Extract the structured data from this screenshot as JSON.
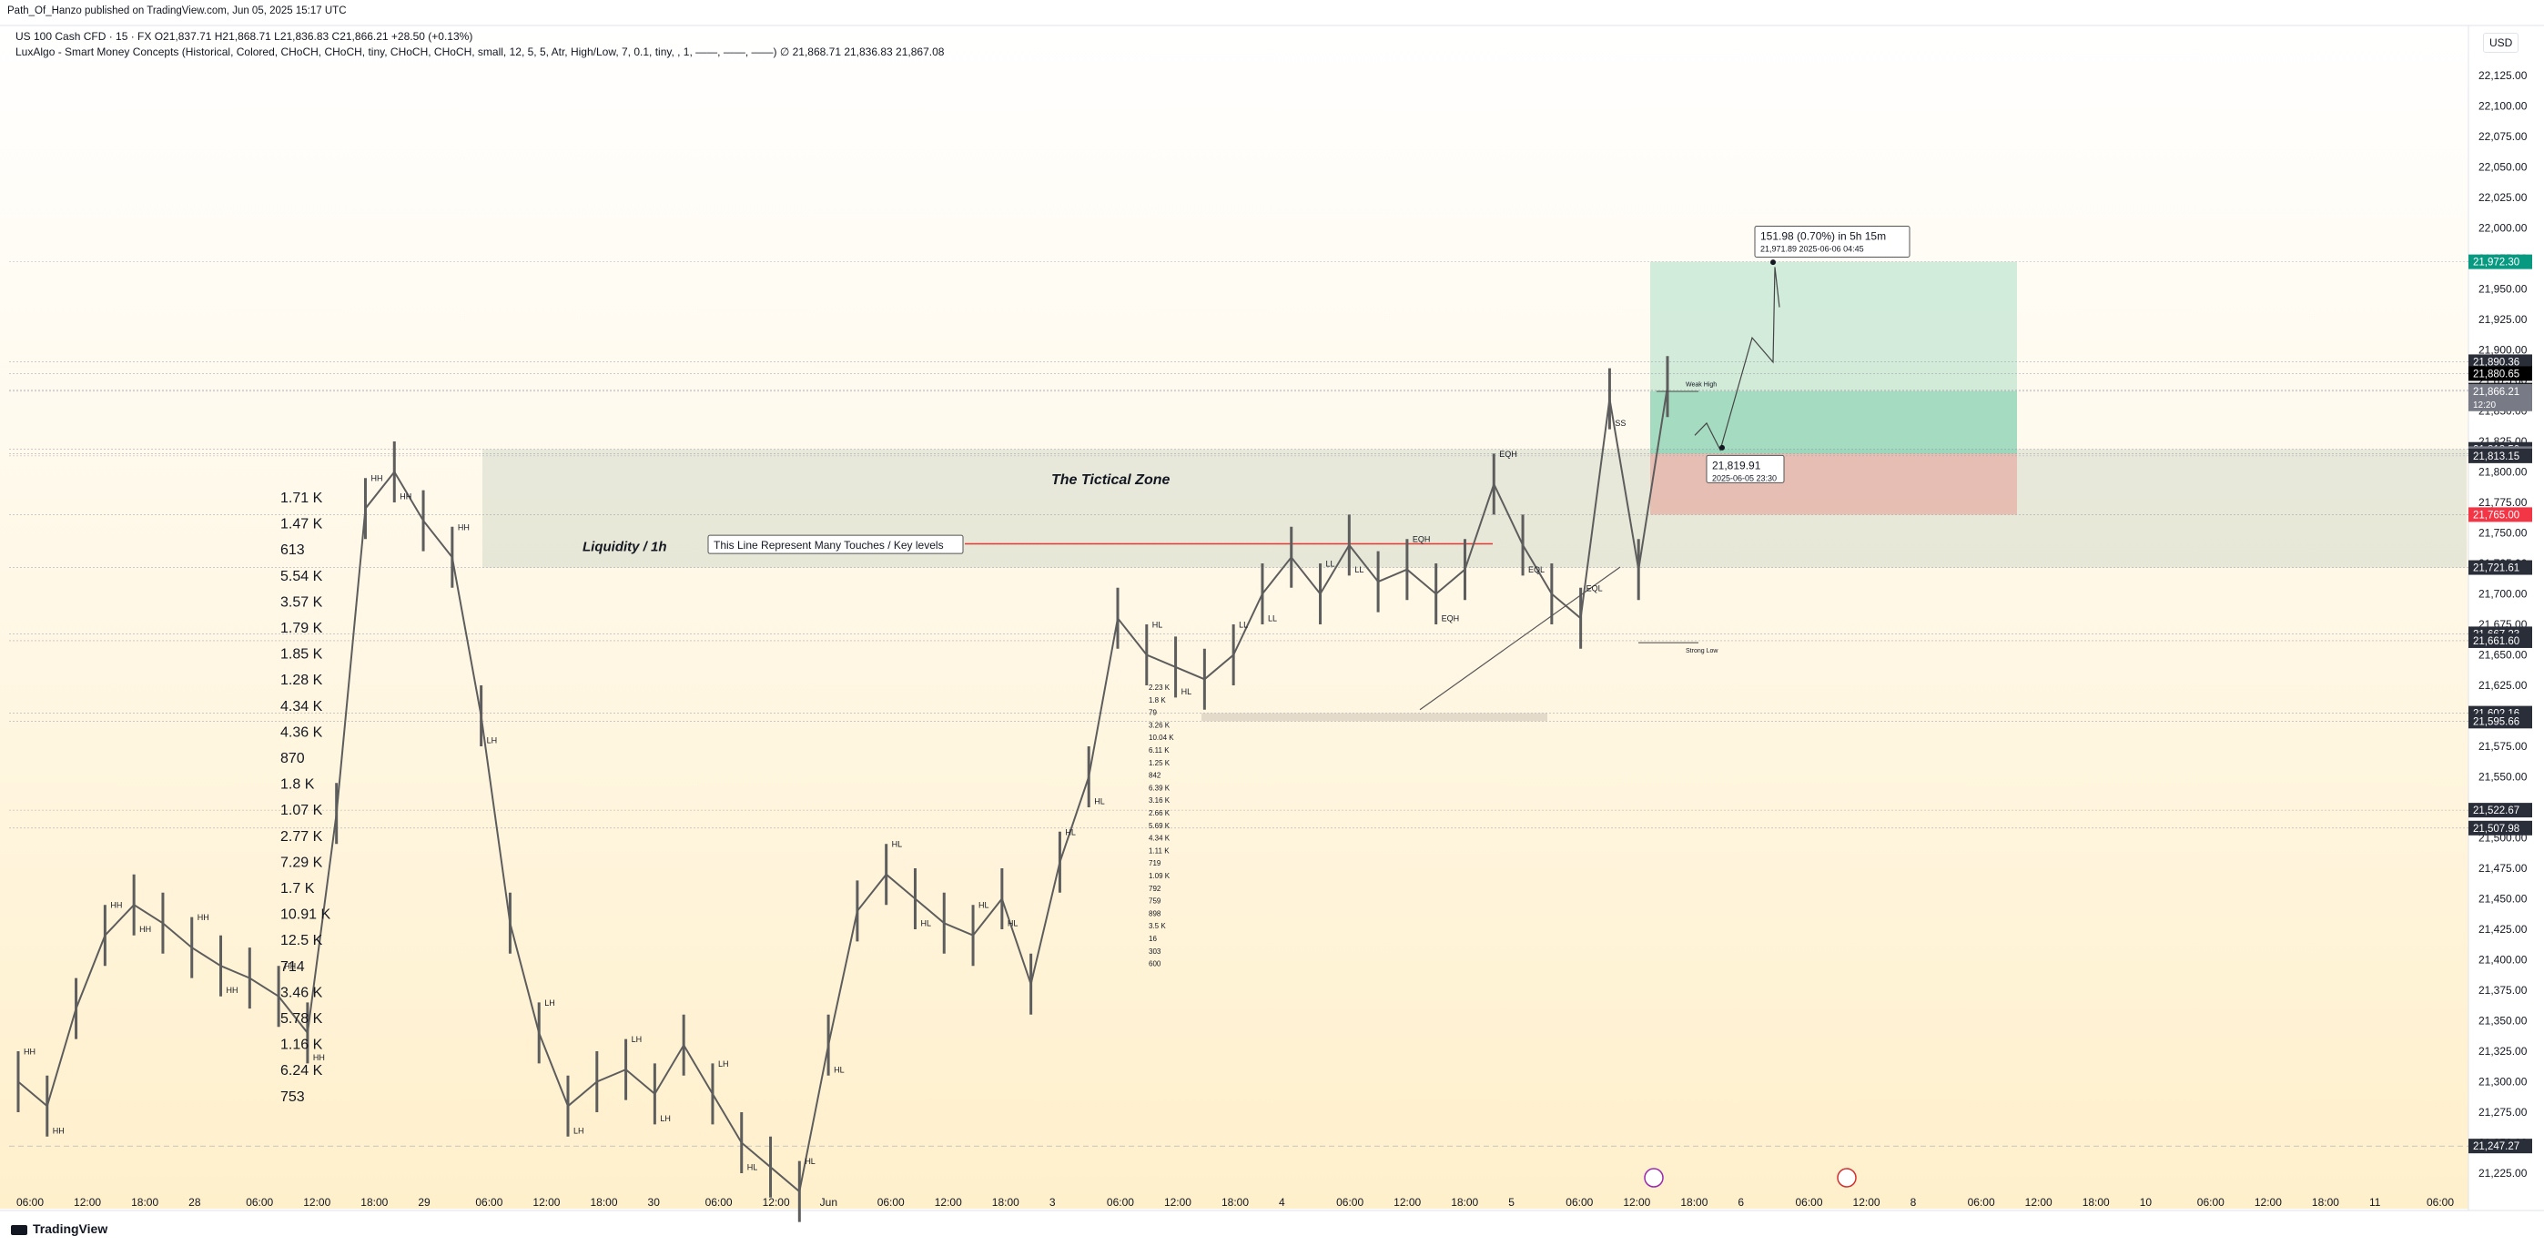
{
  "header": {
    "published_by": "Path_Of_Hanzo published on TradingView.com, Jun 05, 2025 15:17 UTC",
    "symbol_line": "US 100 Cash CFD · 15 · FX  O21,837.71  H21,868.71  L21,836.83  C21,866.21  +28.50 (+0.13%)",
    "indicator_line": "LuxAlgo - Smart Money Concepts (Historical, Colored, CHoCH, CHoCH, tiny, CHoCH, CHoCH, small, 12, 5, 5, Atr, High/Low, 7, 0.1, tiny, , 1, ——, ——, ——)  ∅  21,868.71  21,836.83  21,867.08"
  },
  "currency": "USD",
  "footer": {
    "brand": "TradingView"
  },
  "colors": {
    "background_top": "#ffffff",
    "background_bottom": "#fff0cc",
    "candle": "#5d5d5d",
    "target_zone": "#7fcfae",
    "stop_zone": "#e79a94",
    "grey_zone": "#b9c9b7",
    "accent_red": "#e53935",
    "target_label": "#089981",
    "stop_label": "#f23645"
  },
  "chart_data": {
    "type": "line",
    "title": "",
    "xlabel": "",
    "ylabel": "",
    "ylim": [
      21210,
      22140
    ],
    "price_ticks": [
      22125,
      22100,
      22075,
      22050,
      22025,
      22000,
      21975,
      21950,
      21925,
      21900,
      21875,
      21850,
      21825,
      21800,
      21775,
      21750,
      21725,
      21700,
      21675,
      21650,
      21625,
      21600,
      21575,
      21550,
      21525,
      21500,
      21475,
      21450,
      21425,
      21400,
      21375,
      21350,
      21325,
      21300,
      21275,
      21250,
      21225
    ],
    "price_tick_labels": [
      "22,125.00",
      "22,100.00",
      "22,075.00",
      "22,050.00",
      "22,025.00",
      "22,000.00",
      "21,975.00",
      "21,950.00",
      "21,925.00",
      "21,900.00",
      "21,875.00",
      "21,850.00",
      "21,825.00",
      "21,800.00",
      "21,775.00",
      "21,750.00",
      "21,725.00",
      "21,700.00",
      "21,675.00",
      "21,650.00",
      "21,625.00",
      "21,600.00",
      "21,575.00",
      "21,550.00",
      "21,525.00",
      "21,500.00",
      "21,475.00",
      "21,450.00",
      "21,425.00",
      "21,400.00",
      "21,375.00",
      "21,350.00",
      "21,325.00",
      "21,300.00",
      "21,275.00",
      "21,250.00",
      "21,225.00"
    ],
    "time_labels": [
      "06:00",
      "12:00",
      "18:00",
      "28",
      "06:00",
      "12:00",
      "18:00",
      "29",
      "06:00",
      "12:00",
      "18:00",
      "30",
      "06:00",
      "12:00",
      "Jun",
      "06:00",
      "12:00",
      "18:00",
      "3",
      "06:00",
      "12:00",
      "18:00",
      "4",
      "06:00",
      "12:00",
      "18:00",
      "5",
      "06:00",
      "12:00",
      "18:00",
      "6",
      "06:00",
      "12:00",
      "8",
      "06:00",
      "12:00",
      "18:00",
      "10",
      "06:00",
      "12:00",
      "18:00",
      "11",
      "06:00"
    ],
    "series": [
      {
        "values": [
          21300,
          21280,
          21360,
          21420,
          21445,
          21430,
          21410,
          21395,
          21385,
          21370,
          21340,
          21520,
          21770,
          21800,
          21760,
          21730,
          21600,
          21430,
          21340,
          21280,
          21300,
          21310,
          21290,
          21330,
          21290,
          21250,
          21230,
          21210,
          21330,
          21440,
          21470,
          21450,
          21430,
          21420,
          21450,
          21380,
          21480,
          21550,
          21680,
          21650,
          21640,
          21630,
          21650,
          21700,
          21730,
          21700,
          21740,
          21710,
          21720,
          21700,
          21720,
          21790,
          21740,
          21700,
          21680,
          21860,
          21720,
          21870
        ]
      }
    ],
    "price_labels": [
      {
        "value": 21972.3,
        "text": "21,972.30",
        "bg": "#089981",
        "fg": "#ffffff"
      },
      {
        "value": 21890.36,
        "text": "21,890.36",
        "bg": "#2a2e39",
        "fg": "#ffffff"
      },
      {
        "value": 21880.65,
        "text": "21,880.65",
        "bg": "#000000",
        "fg": "#ffffff"
      },
      {
        "value": 21867.08,
        "text": "21,867.08",
        "bg": "#000000",
        "fg": "#ffffff"
      },
      {
        "value": 21866.21,
        "text": "21,866.21",
        "bg": "#787b86",
        "fg": "#ffffff",
        "sub": "12:20"
      },
      {
        "value": 21818.5,
        "text": "21,818.50",
        "bg": "#2a2e39",
        "fg": "#ffffff"
      },
      {
        "value": 21815.0,
        "text": "21,815.00",
        "bg": "#787b86",
        "fg": "#ffffff"
      },
      {
        "value": 21813.15,
        "text": "21,813.15",
        "bg": "#2a2e39",
        "fg": "#ffffff"
      },
      {
        "value": 21765.0,
        "text": "21,765.00",
        "bg": "#f23645",
        "fg": "#ffffff"
      },
      {
        "value": 21721.61,
        "text": "21,721.61",
        "bg": "#2a2e39",
        "fg": "#ffffff"
      },
      {
        "value": 21667.23,
        "text": "21,667.23",
        "bg": "#2a2e39",
        "fg": "#ffffff"
      },
      {
        "value": 21661.6,
        "text": "21,661.60",
        "bg": "#2a2e39",
        "fg": "#ffffff"
      },
      {
        "value": 21602.16,
        "text": "21,602.16",
        "bg": "#2a2e39",
        "fg": "#ffffff"
      },
      {
        "value": 21595.66,
        "text": "21,595.66",
        "bg": "#2a2e39",
        "fg": "#ffffff"
      },
      {
        "value": 21522.67,
        "text": "21,522.67",
        "bg": "#2a2e39",
        "fg": "#ffffff"
      },
      {
        "value": 21507.98,
        "text": "21,507.98",
        "bg": "#2a2e39",
        "fg": "#ffffff"
      },
      {
        "value": 21247.27,
        "text": "21,247.27",
        "bg": "#2a2e39",
        "fg": "#ffffff"
      }
    ],
    "annotations": {
      "zone_title": "The Tictical Zone",
      "liquidity": "Liquidity / 1h",
      "key_line_note": "This Line Represent Many Touches  / Key levels",
      "projection_box": {
        "line1": "151.98 (0.70%) in 5h 15m",
        "line2": "21,971.89     2025-06-06  04:45"
      },
      "entry_box": {
        "line1": "21,819.91",
        "line2": "2025-06-05 23:30"
      },
      "weak_high": "Weak High",
      "strong_low": "Strong Low",
      "structure_labels": [
        "HH",
        "HH",
        "HH",
        "HH",
        "HH",
        "HH",
        "HH",
        "HH",
        "HH",
        "HH",
        "HH",
        "LH",
        "LH",
        "LH",
        "LH",
        "LH",
        "LH",
        "HL",
        "HL",
        "HL",
        "HL",
        "HL",
        "HL",
        "HL",
        "HL",
        "HL",
        "HL",
        "HL",
        "LL",
        "LL",
        "LL",
        "LL",
        "EQH",
        "EQH",
        "EQH",
        "EQL",
        "EQL",
        "SS"
      ],
      "volume_profile_left": [
        "1.71 K",
        "1.47 K",
        "613",
        "5.54 K",
        "3.57 K",
        "1.79 K",
        "1.85 K",
        "1.28 K",
        "4.34 K",
        "4.36 K",
        "870",
        "1.8 K",
        "1.07 K",
        "2.77 K",
        "7.29 K",
        "1.7 K",
        "10.91 K",
        "12.5 K",
        "714",
        "3.46 K",
        "5.78 K",
        "1.16 K",
        "6.24 K",
        "753"
      ],
      "volume_profile_mid": [
        "2.23 K",
        "1.8 K",
        "79",
        "3.26 K",
        "10.04 K",
        "6.11 K",
        "1.25 K",
        "842",
        "6.39 K",
        "3.16 K",
        "2.66 K",
        "5.69 K",
        "4.34 K",
        "1.11 K",
        "719",
        "1.09 K",
        "792",
        "759",
        "898",
        "3.5 K",
        "16",
        "303",
        "600"
      ]
    }
  }
}
